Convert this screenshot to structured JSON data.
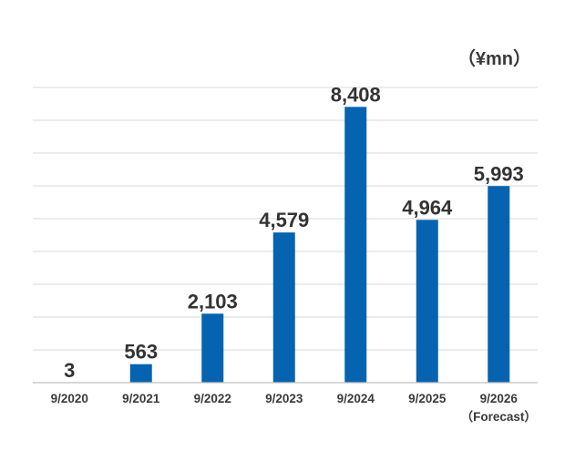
{
  "chart_data": {
    "type": "bar",
    "title": "",
    "xlabel": "",
    "ylabel": "",
    "unit_label": "（¥mn）",
    "categories": [
      "9/2020",
      "9/2021",
      "9/2022",
      "9/2023",
      "9/2024",
      "9/2025",
      "9/2026"
    ],
    "category_sublabels": [
      "",
      "",
      "",
      "",
      "",
      "",
      "（Forecast）"
    ],
    "values": [
      3,
      563,
      2103,
      4579,
      8408,
      4964,
      5993
    ],
    "value_labels": [
      "3",
      "563",
      "2,103",
      "4,579",
      "8,408",
      "4,964",
      "5,993"
    ],
    "ylim": [
      0,
      9000
    ],
    "gridline_step": 1000,
    "grid": true,
    "legend": "none",
    "colors": {
      "bar": "#0563b0",
      "grid": "#d9d9d9",
      "axis": "#bfbfbf",
      "text": "#333333"
    }
  }
}
